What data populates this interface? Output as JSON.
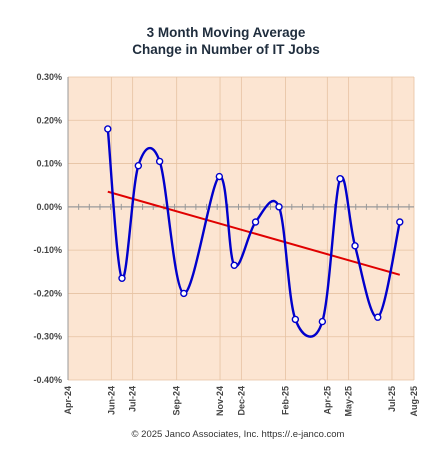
{
  "chart_data": {
    "type": "line",
    "title_line1": "3 Month Moving Average",
    "title_line2": "Change in Number of IT Jobs",
    "xlabel": "",
    "ylabel": "",
    "ylim": [
      -0.4,
      0.3
    ],
    "yticks": [
      "0.30%",
      "0.20%",
      "0.10%",
      "0.00%",
      "-0.10%",
      "-0.20%",
      "-0.30%",
      "-0.40%"
    ],
    "ytick_values": [
      0.3,
      0.2,
      0.1,
      0.0,
      -0.1,
      -0.2,
      -0.3,
      -0.4
    ],
    "x_range": [
      "2024-04-01",
      "2025-08-01"
    ],
    "xticks": [
      {
        "label": "Apr-24",
        "date": "2024-04-01"
      },
      {
        "label": "Jun-24",
        "date": "2024-06-01"
      },
      {
        "label": "Jul-24",
        "date": "2024-07-01"
      },
      {
        "label": "Sep-24",
        "date": "2024-09-01"
      },
      {
        "label": "Nov-24",
        "date": "2024-11-01"
      },
      {
        "label": "Dec-24",
        "date": "2024-12-01"
      },
      {
        "label": "Feb-25",
        "date": "2025-02-01"
      },
      {
        "label": "Apr-25",
        "date": "2025-04-01"
      },
      {
        "label": "May-25",
        "date": "2025-05-01"
      },
      {
        "label": "Jul-25",
        "date": "2025-07-01"
      },
      {
        "label": "Aug-25",
        "date": "2025-08-01"
      }
    ],
    "series": [
      {
        "values": [
          {
            "x": "2024-05-27",
            "y": 0.18
          },
          {
            "x": "2024-06-16",
            "y": -0.165
          },
          {
            "x": "2024-07-09",
            "y": 0.095
          },
          {
            "x": "2024-08-08",
            "y": 0.105
          },
          {
            "x": "2024-09-11",
            "y": -0.2
          },
          {
            "x": "2024-10-31",
            "y": 0.07
          },
          {
            "x": "2024-11-21",
            "y": -0.135
          },
          {
            "x": "2024-12-21",
            "y": -0.035
          },
          {
            "x": "2025-01-23",
            "y": 0.0
          },
          {
            "x": "2025-02-15",
            "y": -0.26
          },
          {
            "x": "2025-03-25",
            "y": -0.265
          },
          {
            "x": "2025-04-19",
            "y": 0.065
          },
          {
            "x": "2025-05-10",
            "y": -0.09
          },
          {
            "x": "2025-06-11",
            "y": -0.255
          },
          {
            "x": "2025-07-12",
            "y": -0.035
          }
        ],
        "color": "#0000cc"
      }
    ],
    "trendline": {
      "color": "#e00000",
      "start": {
        "x": "2024-05-27",
        "y": 0.035
      },
      "end": {
        "x": "2025-07-12",
        "y": -0.157
      }
    },
    "colors": {
      "plot_background": "#fce5d2",
      "grid": "#e6c2a2",
      "axis": "#999999"
    },
    "grid": true,
    "legend": "none",
    "credit": "© 2025 Janco Associates, Inc. https://.e-janco.com"
  }
}
